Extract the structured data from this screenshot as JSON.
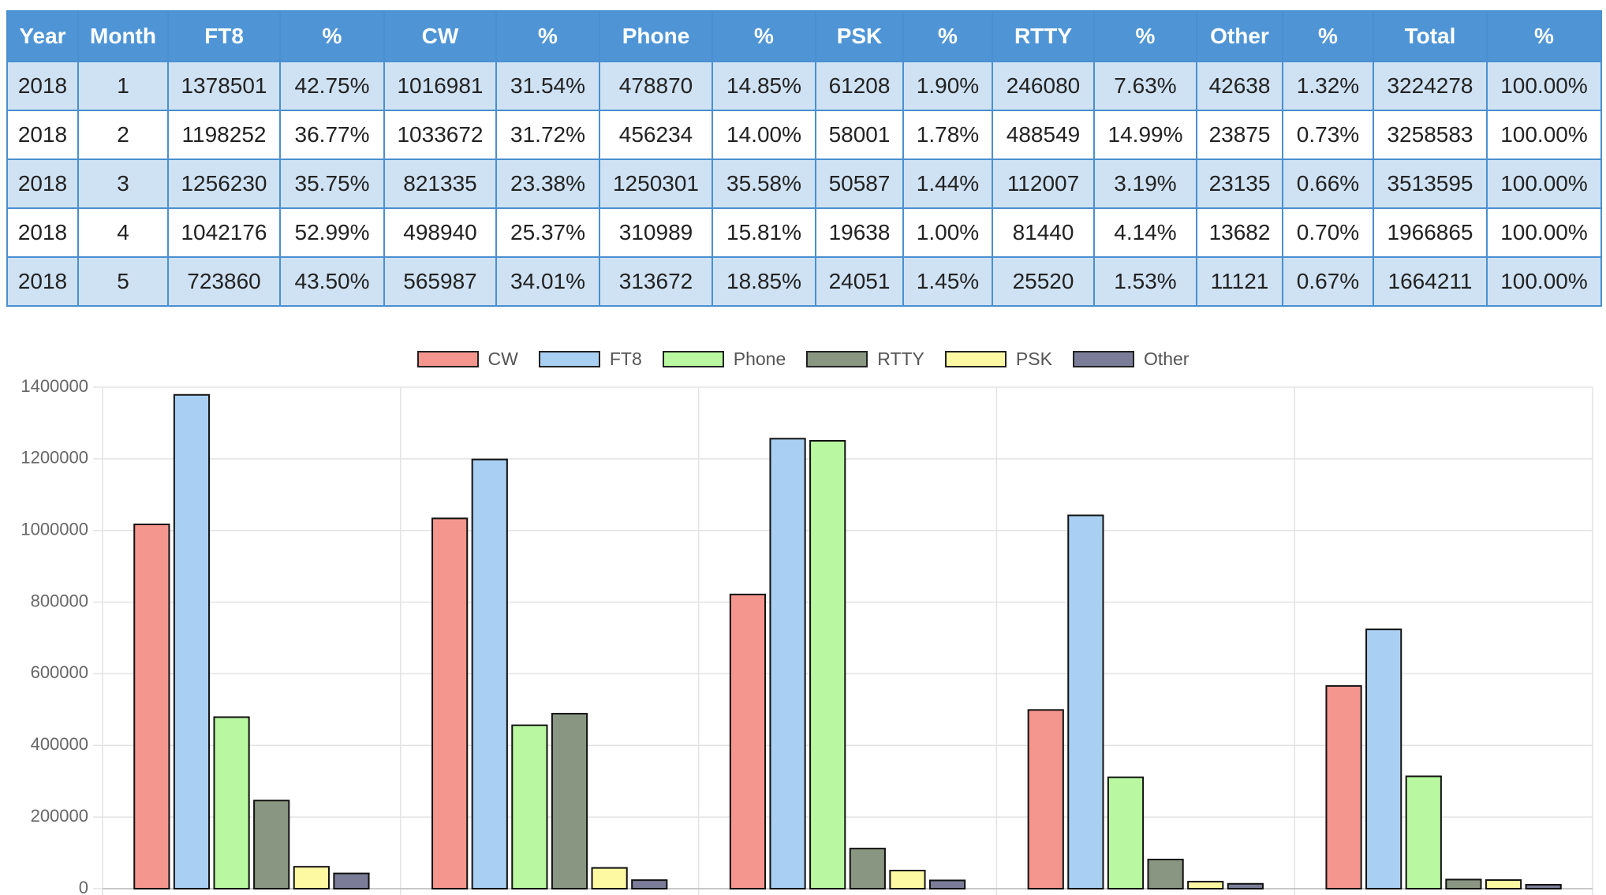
{
  "table": {
    "header": [
      "Year",
      "Month",
      "FT8",
      "%",
      "CW",
      "%",
      "Phone",
      "%",
      "PSK",
      "%",
      "RTTY",
      "%",
      "Other",
      "%",
      "Total",
      "%"
    ],
    "rows": [
      [
        "2018",
        "1",
        "1378501",
        "42.75%",
        "1016981",
        "31.54%",
        "478870",
        "14.85%",
        "61208",
        "1.90%",
        "246080",
        "7.63%",
        "42638",
        "1.32%",
        "3224278",
        "100.00%"
      ],
      [
        "2018",
        "2",
        "1198252",
        "36.77%",
        "1033672",
        "31.72%",
        "456234",
        "14.00%",
        "58001",
        "1.78%",
        "488549",
        "14.99%",
        "23875",
        "0.73%",
        "3258583",
        "100.00%"
      ],
      [
        "2018",
        "3",
        "1256230",
        "35.75%",
        "821335",
        "23.38%",
        "1250301",
        "35.58%",
        "50587",
        "1.44%",
        "112007",
        "3.19%",
        "23135",
        "0.66%",
        "3513595",
        "100.00%"
      ],
      [
        "2018",
        "4",
        "1042176",
        "52.99%",
        "498940",
        "25.37%",
        "310989",
        "15.81%",
        "19638",
        "1.00%",
        "81440",
        "4.14%",
        "13682",
        "0.70%",
        "1966865",
        "100.00%"
      ],
      [
        "2018",
        "5",
        "723860",
        "43.50%",
        "565987",
        "34.01%",
        "313672",
        "18.85%",
        "24051",
        "1.45%",
        "25520",
        "1.53%",
        "11121",
        "0.67%",
        "1664211",
        "100.00%"
      ]
    ]
  },
  "chart_data": {
    "type": "bar",
    "categories": [
      null,
      null,
      null,
      null,
      null
    ],
    "series": [
      {
        "name": "CW",
        "color": "#f4968e",
        "values": [
          1016981,
          1033672,
          821335,
          498940,
          565987
        ]
      },
      {
        "name": "FT8",
        "color": "#a9cff2",
        "values": [
          1378501,
          1198252,
          1256230,
          1042176,
          723860
        ]
      },
      {
        "name": "Phone",
        "color": "#b9f8a0",
        "values": [
          478870,
          456234,
          1250301,
          310989,
          313672
        ]
      },
      {
        "name": "RTTY",
        "color": "#889682",
        "values": [
          246080,
          488549,
          112007,
          81440,
          25520
        ]
      },
      {
        "name": "PSK",
        "color": "#fdf9a3",
        "values": [
          61208,
          58001,
          50587,
          19638,
          24051
        ]
      },
      {
        "name": "Other",
        "color": "#7b7d98",
        "values": [
          42638,
          23875,
          23135,
          13682,
          11121
        ]
      }
    ],
    "ylim": [
      0,
      1400000
    ],
    "yticks": [
      0,
      200000,
      400000,
      600000,
      800000,
      1000000,
      1200000,
      1400000
    ],
    "grid": true,
    "legend": "top"
  }
}
